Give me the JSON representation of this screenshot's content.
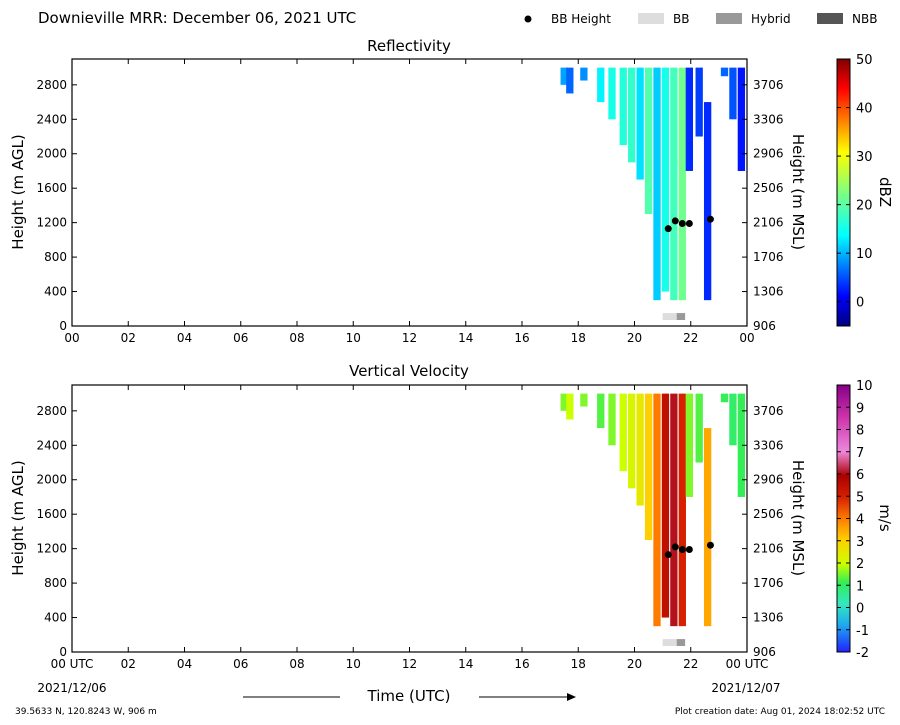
{
  "header": {
    "title": "Downieville MRR:  December 06, 2021 UTC"
  },
  "legend": {
    "items": [
      {
        "label": "BB Height",
        "marker": "dot",
        "color": "#000000"
      },
      {
        "label": "BB",
        "marker": "patch",
        "color": "#dddddd"
      },
      {
        "label": "Hybrid",
        "marker": "patch",
        "color": "#999999"
      },
      {
        "label": "NBB",
        "marker": "patch",
        "color": "#555555"
      }
    ]
  },
  "footer": {
    "xlabel": "Time (UTC)",
    "location": "39.5633 N, 120.8243 W, 906 m",
    "creation": "Plot creation date: Aug 01, 2024 18:02:52 UTC"
  },
  "chart_data": [
    {
      "type": "heatmap",
      "title": "Reflectivity",
      "ylabel": "Height (m AGL)",
      "y2label": "Height (m MSL)",
      "xlim": [
        0,
        24
      ],
      "ylim": [
        0,
        3100
      ],
      "x_ticks": [
        "00",
        "02",
        "04",
        "06",
        "08",
        "10",
        "12",
        "14",
        "16",
        "18",
        "20",
        "22",
        "00"
      ],
      "y_ticks": [
        0,
        400,
        800,
        1200,
        1600,
        2000,
        2400,
        2800
      ],
      "y2_ticks": [
        906,
        1306,
        1706,
        2106,
        2506,
        2906,
        3306,
        3706
      ],
      "x_start_label": "00",
      "x_end_label": "00",
      "date_start": "",
      "date_end": "",
      "colorbar": {
        "label": "dBZ",
        "ticks": [
          0,
          10,
          20,
          30,
          40,
          50
        ],
        "range": [
          -5,
          50
        ],
        "colormap": "jet"
      },
      "precip_columns": [
        {
          "x": 17.5,
          "top": 3000,
          "bottom": 2800,
          "value": 9
        },
        {
          "x": 17.7,
          "top": 3000,
          "bottom": 2700,
          "value": 6
        },
        {
          "x": 18.2,
          "top": 3000,
          "bottom": 2850,
          "value": 8
        },
        {
          "x": 18.8,
          "top": 3000,
          "bottom": 2600,
          "value": 13
        },
        {
          "x": 19.2,
          "top": 3000,
          "bottom": 2400,
          "value": 15
        },
        {
          "x": 19.6,
          "top": 3000,
          "bottom": 2100,
          "value": 16
        },
        {
          "x": 19.9,
          "top": 3000,
          "bottom": 1900,
          "value": 17
        },
        {
          "x": 20.2,
          "top": 3000,
          "bottom": 1700,
          "value": 12
        },
        {
          "x": 20.5,
          "top": 3000,
          "bottom": 1300,
          "value": 19
        },
        {
          "x": 20.8,
          "top": 3000,
          "bottom": 300,
          "value": 11
        },
        {
          "x": 21.1,
          "top": 3000,
          "bottom": 400,
          "value": 15
        },
        {
          "x": 21.4,
          "top": 3000,
          "bottom": 300,
          "value": 18
        },
        {
          "x": 21.7,
          "top": 3000,
          "bottom": 300,
          "value": 21
        },
        {
          "x": 21.95,
          "top": 3000,
          "bottom": 1800,
          "value": 3
        },
        {
          "x": 22.3,
          "top": 3000,
          "bottom": 2200,
          "value": 4
        },
        {
          "x": 22.6,
          "top": 2600,
          "bottom": 300,
          "value": 3
        },
        {
          "x": 23.2,
          "top": 3000,
          "bottom": 2900,
          "value": 6
        },
        {
          "x": 23.5,
          "top": 3000,
          "bottom": 2400,
          "value": 5
        },
        {
          "x": 23.8,
          "top": 3000,
          "bottom": 1800,
          "value": 2
        }
      ],
      "bb_heights": [
        {
          "x": 21.2,
          "y": 1130
        },
        {
          "x": 21.45,
          "y": 1220
        },
        {
          "x": 21.7,
          "y": 1190
        },
        {
          "x": 21.95,
          "y": 1190
        },
        {
          "x": 22.7,
          "y": 1240
        }
      ],
      "bb_type_bar": [
        {
          "x0": 21.0,
          "x1": 21.5,
          "type": "BB"
        },
        {
          "x0": 21.5,
          "x1": 21.8,
          "type": "Hybrid"
        }
      ]
    },
    {
      "type": "heatmap",
      "title": "Vertical Velocity",
      "ylabel": "Height (m AGL)",
      "y2label": "Height (m MSL)",
      "xlim": [
        0,
        24
      ],
      "ylim": [
        0,
        3100
      ],
      "x_ticks": [
        "00",
        "02",
        "04",
        "06",
        "08",
        "10",
        "12",
        "14",
        "16",
        "18",
        "20",
        "22",
        "00"
      ],
      "y_ticks": [
        0,
        400,
        800,
        1200,
        1600,
        2000,
        2400,
        2800
      ],
      "y2_ticks": [
        906,
        1306,
        1706,
        2106,
        2506,
        2906,
        3306,
        3706
      ],
      "x_start_label": "00 UTC",
      "x_end_label": "00 UTC",
      "date_start": "2021/12/06",
      "date_end": "2021/12/07",
      "colorbar": {
        "label": "m/s",
        "ticks": [
          -2,
          -1,
          0,
          1,
          2,
          3,
          4,
          5,
          6,
          7,
          8,
          9,
          10
        ],
        "range": [
          -2,
          10
        ],
        "colormap": "velocity"
      },
      "precip_columns": [
        {
          "x": 17.5,
          "top": 3000,
          "bottom": 2800,
          "value": 1.5
        },
        {
          "x": 17.7,
          "top": 3000,
          "bottom": 2700,
          "value": 2
        },
        {
          "x": 18.2,
          "top": 3000,
          "bottom": 2850,
          "value": 1.5
        },
        {
          "x": 18.8,
          "top": 3000,
          "bottom": 2600,
          "value": 1.2
        },
        {
          "x": 19.2,
          "top": 3000,
          "bottom": 2400,
          "value": 1.5
        },
        {
          "x": 19.6,
          "top": 3000,
          "bottom": 2100,
          "value": 2.0
        },
        {
          "x": 19.9,
          "top": 3000,
          "bottom": 1900,
          "value": 2.2
        },
        {
          "x": 20.2,
          "top": 3000,
          "bottom": 1700,
          "value": 2.5
        },
        {
          "x": 20.5,
          "top": 3000,
          "bottom": 1300,
          "value": 3.0
        },
        {
          "x": 20.8,
          "top": 3000,
          "bottom": 300,
          "value": 4.0
        },
        {
          "x": 21.1,
          "top": 3000,
          "bottom": 400,
          "value": 5.5
        },
        {
          "x": 21.4,
          "top": 3000,
          "bottom": 300,
          "value": 6.2
        },
        {
          "x": 21.7,
          "top": 3000,
          "bottom": 300,
          "value": 5.0
        },
        {
          "x": 21.95,
          "top": 3000,
          "bottom": 1800,
          "value": 1.5
        },
        {
          "x": 22.3,
          "top": 3000,
          "bottom": 2200,
          "value": 1.2
        },
        {
          "x": 22.6,
          "top": 2600,
          "bottom": 300,
          "value": 3.5
        },
        {
          "x": 23.2,
          "top": 3000,
          "bottom": 2900,
          "value": 1.0
        },
        {
          "x": 23.5,
          "top": 3000,
          "bottom": 2400,
          "value": 0.8
        },
        {
          "x": 23.8,
          "top": 3000,
          "bottom": 1800,
          "value": 1.0
        }
      ],
      "bb_heights": [
        {
          "x": 21.2,
          "y": 1130
        },
        {
          "x": 21.45,
          "y": 1220
        },
        {
          "x": 21.7,
          "y": 1190
        },
        {
          "x": 21.95,
          "y": 1190
        },
        {
          "x": 22.7,
          "y": 1240
        }
      ],
      "bb_type_bar": [
        {
          "x0": 21.0,
          "x1": 21.5,
          "type": "BB"
        },
        {
          "x0": 21.5,
          "x1": 21.8,
          "type": "Hybrid"
        }
      ]
    }
  ]
}
